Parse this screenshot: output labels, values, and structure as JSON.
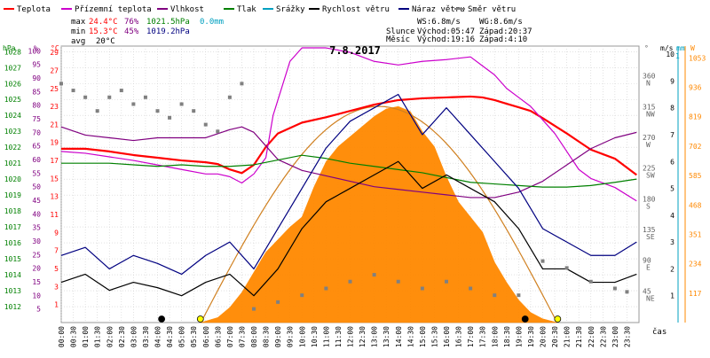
{
  "chart_data": {
    "type": "line",
    "title": "7.8.2017",
    "legend": [
      {
        "name": "Teplota",
        "color": "#ff0000"
      },
      {
        "name": "Přízemní teplota",
        "color": "#cc00cc"
      },
      {
        "name": "Vlhkost",
        "color": "#800080"
      },
      {
        "name": "Tlak",
        "color": "#008000"
      },
      {
        "name": "Srážky",
        "color": "#00a0c0"
      },
      {
        "name": "Rychlost větru",
        "color": "#000000"
      },
      {
        "name": "Náraz větru",
        "color": "#000080"
      },
      {
        "name": "Směr větru",
        "color": "#808080"
      }
    ],
    "stats": {
      "max": {
        "label": "max",
        "temp": "24.4°C",
        "hum": "76%",
        "press": "1021.5hPa",
        "rain": "0.0mm"
      },
      "min": {
        "label": "min",
        "temp": "15.3°C",
        "hum": "45%",
        "press": "1019.2hPa"
      },
      "avg": {
        "label": "avg",
        "temp": "20°C"
      },
      "wind": {
        "ws": "WS:6.8m/s",
        "wg": "WG:8.6m/s"
      },
      "sun": {
        "label": "Slunce",
        "rise": "Východ:05:47",
        "set": "Západ:20:37"
      },
      "moon": {
        "label": "Měsíc",
        "rise": "Východ:19:16",
        "set": "Západ:4:10"
      }
    },
    "axes": {
      "pressure": {
        "unit": "hPa",
        "ticks": [
          "1028",
          "1027",
          "1026",
          "1025",
          "1024",
          "1023",
          "1022",
          "1021",
          "1020",
          "1019",
          "1018",
          "1017",
          "1016",
          "1015",
          "1014",
          "1013",
          "1012"
        ]
      },
      "humidity": {
        "unit": "%",
        "ticks": [
          "100",
          "95",
          "90",
          "85",
          "80",
          "75",
          "70",
          "65",
          "60",
          "55",
          "50",
          "45",
          "40",
          "35",
          "30",
          "25",
          "20",
          "15",
          "10",
          "5"
        ]
      },
      "temperature": {
        "unit": "°C",
        "ticks": [
          "29",
          "27",
          "25",
          "23",
          "21",
          "19",
          "17",
          "15",
          "13",
          "11",
          "9",
          "7",
          "5",
          "3",
          "1"
        ]
      },
      "direction": {
        "unit": "°",
        "ticks": [
          "360",
          "315",
          "270",
          "225",
          "180",
          "135",
          "90",
          "45"
        ],
        "compass": [
          "N",
          "NW",
          "W",
          "SW",
          "S",
          "SE",
          "E",
          "NE"
        ]
      },
      "wind": {
        "unit": "m/s",
        "ticks": [
          "10",
          "9",
          "8",
          "7",
          "6",
          "5",
          "4",
          "3",
          "2",
          "1"
        ]
      },
      "rain": {
        "unit": "mm",
        "ticks": [
          "1"
        ]
      },
      "solar": {
        "unit": "W",
        "ticks": [
          "1053",
          "936",
          "819",
          "702",
          "585",
          "468",
          "351",
          "234",
          "117"
        ]
      },
      "time": {
        "label": "čas",
        "ticks": [
          "00:00",
          "00:30",
          "01:00",
          "01:30",
          "02:00",
          "02:30",
          "03:00",
          "03:30",
          "04:00",
          "04:30",
          "05:00",
          "05:30",
          "06:00",
          "06:30",
          "07:00",
          "07:30",
          "08:00",
          "08:30",
          "09:00",
          "09:30",
          "10:00",
          "10:30",
          "11:00",
          "11:30",
          "12:00",
          "12:30",
          "13:00",
          "13:30",
          "14:00",
          "14:30",
          "15:00",
          "15:30",
          "16:00",
          "16:30",
          "17:00",
          "17:30",
          "18:00",
          "18:30",
          "19:00",
          "19:30",
          "20:00",
          "20:30",
          "21:00",
          "21:30",
          "22:00",
          "22:30",
          "23:00",
          "23:30"
        ]
      }
    },
    "series": [
      {
        "name": "Teplota",
        "color": "#ff0000",
        "axis": "temperature",
        "x": [
          0,
          1,
          2,
          3,
          4,
          5,
          6,
          6.5,
          7,
          7.5,
          8,
          8.5,
          9,
          10,
          11,
          12,
          13,
          14,
          15,
          16,
          17,
          17.5,
          18,
          18.5,
          19,
          19.5,
          20,
          21,
          21.5,
          22,
          23,
          23.9
        ],
        "y": [
          18.3,
          18.3,
          18,
          17.6,
          17.3,
          17,
          16.8,
          16.6,
          16,
          15.6,
          16.5,
          18.5,
          20,
          21.2,
          21.8,
          22.5,
          23.2,
          23.7,
          23.9,
          24,
          24.1,
          24,
          23.7,
          23.3,
          22.9,
          22.5,
          21.7,
          20,
          19.1,
          18.2,
          17.2,
          15.4
        ]
      },
      {
        "name": "Přízemní teplota",
        "color": "#cc00cc",
        "axis": "temperature",
        "x": [
          0,
          1,
          2,
          3,
          4,
          5,
          6,
          6.5,
          7,
          7.5,
          8,
          8.5,
          8.8,
          9.5,
          10,
          11,
          12,
          13,
          14,
          15,
          16,
          17,
          17.5,
          18,
          18.5,
          19,
          19.5,
          20,
          20.5,
          21,
          21.5,
          22,
          23,
          23.9
        ],
        "y": [
          18,
          17.8,
          17.4,
          17,
          16.5,
          16,
          15.5,
          15.5,
          15.2,
          14.5,
          15.5,
          17.3,
          22,
          28,
          29.5,
          29.5,
          29,
          28,
          27.6,
          28,
          28.2,
          28.5,
          27.5,
          26.5,
          25,
          24,
          23,
          21.5,
          20,
          18,
          16,
          15,
          14,
          12.5
        ]
      },
      {
        "name": "Vlhkost",
        "color": "#800080",
        "axis": "humidity",
        "x": [
          0,
          1,
          2,
          3,
          4,
          5,
          6,
          7,
          7.5,
          8,
          8.5,
          9,
          10,
          11,
          12,
          13,
          14,
          15,
          16,
          17,
          18,
          19,
          19.5,
          20,
          21,
          22,
          23,
          23.9
        ],
        "y": [
          72,
          69,
          68,
          67,
          68,
          68,
          68,
          71,
          72,
          70,
          65,
          60,
          56,
          54,
          52,
          50,
          49,
          48,
          47,
          46,
          46,
          48,
          50,
          52,
          58,
          64,
          68,
          70
        ]
      },
      {
        "name": "Tlak",
        "color": "#008000",
        "axis": "pressure",
        "x": [
          0,
          1,
          2,
          3,
          4,
          5,
          6,
          7,
          8,
          9,
          10,
          11,
          12,
          13,
          14,
          15,
          16,
          17,
          18,
          19,
          20,
          21,
          22,
          23,
          23.9
        ],
        "y": [
          1021.0,
          1021.0,
          1021.0,
          1020.9,
          1020.8,
          1020.9,
          1020.8,
          1020.8,
          1020.9,
          1021.2,
          1021.5,
          1021.3,
          1021.0,
          1020.8,
          1020.6,
          1020.4,
          1020.1,
          1019.8,
          1019.7,
          1019.6,
          1019.5,
          1019.5,
          1019.6,
          1019.8,
          1020.0
        ]
      },
      {
        "name": "Rychlost větru",
        "color": "#000000",
        "axis": "wind",
        "x": [
          0,
          1,
          2,
          3,
          4,
          5,
          6,
          7,
          8,
          9,
          10,
          11,
          12,
          13,
          14,
          15,
          16,
          17,
          18,
          19,
          20,
          21,
          22,
          23,
          23.9
        ],
        "y": [
          1.5,
          1.8,
          1.2,
          1.5,
          1.3,
          1.0,
          1.5,
          1.8,
          1.0,
          2.0,
          3.5,
          4.5,
          5.0,
          5.5,
          6.0,
          5.0,
          5.5,
          5.0,
          4.5,
          3.5,
          2.0,
          2.0,
          1.5,
          1.5,
          1.8
        ]
      },
      {
        "name": "Náraz větru",
        "color": "#000080",
        "axis": "wind",
        "x": [
          0,
          1,
          2,
          3,
          4,
          5,
          6,
          7,
          8,
          9,
          10,
          11,
          12,
          13,
          14,
          15,
          16,
          17,
          18,
          19,
          20,
          21,
          22,
          23,
          23.9
        ],
        "y": [
          2.5,
          2.8,
          2.0,
          2.5,
          2.2,
          1.8,
          2.5,
          3.0,
          2.0,
          3.5,
          5.0,
          6.5,
          7.5,
          8.0,
          8.5,
          7.0,
          8.0,
          7.0,
          6.0,
          5.0,
          3.5,
          3.0,
          2.5,
          2.5,
          3.0
        ]
      }
    ],
    "solar_radiation": {
      "axis": "solar",
      "x": [
        5.8,
        6.5,
        7,
        7.5,
        8,
        8.5,
        9,
        9.5,
        10,
        10.5,
        11,
        11.5,
        12,
        12.5,
        13,
        13.5,
        14,
        14.5,
        15,
        15.5,
        16,
        16.5,
        17,
        17.5,
        18,
        18.5,
        19,
        19.5,
        20,
        20.6
      ],
      "y": [
        0,
        20,
        60,
        120,
        200,
        280,
        330,
        380,
        420,
        540,
        640,
        700,
        740,
        780,
        820,
        850,
        860,
        840,
        760,
        700,
        580,
        480,
        420,
        360,
        240,
        160,
        90,
        40,
        15,
        0
      ],
      "theoretical_max": 860
    },
    "wind_direction": {
      "axis": "direction",
      "x": [
        0,
        0.5,
        1,
        1.5,
        2,
        2.5,
        3,
        3.5,
        4,
        4.5,
        5,
        5.5,
        6,
        6.5,
        7,
        7.5,
        8,
        9,
        10,
        11,
        12,
        13,
        14,
        15,
        16,
        17,
        18,
        19,
        20,
        21,
        22,
        23,
        23.5
      ],
      "y": [
        350,
        340,
        330,
        310,
        330,
        340,
        320,
        330,
        310,
        300,
        320,
        310,
        290,
        280,
        330,
        350,
        20,
        30,
        40,
        50,
        60,
        70,
        60,
        50,
        60,
        50,
        40,
        40,
        90,
        80,
        60,
        50,
        45
      ]
    },
    "markers": [
      {
        "label": "Měsíc západ",
        "time": 4.17,
        "color": "#000000"
      },
      {
        "label": "Slunce východ",
        "time": 5.78,
        "color": "#ffff00"
      },
      {
        "label": "Měsíc východ",
        "time": 19.27,
        "color": "#000000"
      },
      {
        "label": "Slunce západ",
        "time": 20.62,
        "color": "#ffff00"
      }
    ]
  }
}
